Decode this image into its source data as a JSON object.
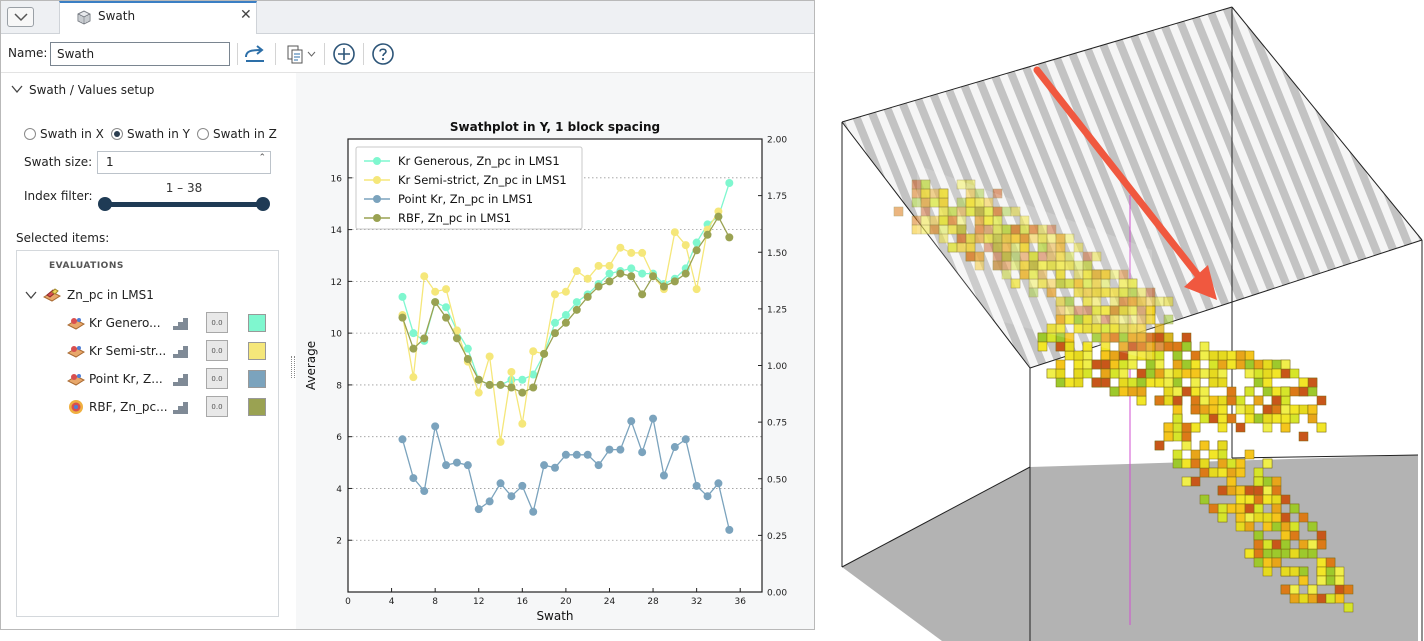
{
  "tab": {
    "title": "Swath",
    "close": "✕"
  },
  "toolbar": {
    "name_label": "Name:",
    "name_value": "Swath"
  },
  "setup": {
    "section_title": "Swath / Values setup",
    "radios": [
      {
        "label": "Swath in X",
        "selected": false
      },
      {
        "label": "Swath in Y",
        "selected": true
      },
      {
        "label": "Swath in Z",
        "selected": false
      }
    ],
    "swath_size_label": "Swath size:",
    "swath_size_value": "1",
    "index_filter_label": "Index filter:",
    "index_filter_range": "1 – 38",
    "index_filter_min": 1,
    "index_filter_max": 38
  },
  "selected_items": {
    "label": "Selected items:",
    "group_header": "EVALUATIONS",
    "root_label": "Zn_pc in LMS1",
    "items": [
      {
        "label": "Kr Genero...",
        "color": "#7ff7cf",
        "icon": "kriging-icon"
      },
      {
        "label": "Kr Semi-str...",
        "color": "#f5e77a",
        "icon": "kriging-icon"
      },
      {
        "label": "Point Kr, Z...",
        "color": "#7ba3bd",
        "icon": "kriging-icon"
      },
      {
        "label": "RBF, Zn_pc...",
        "color": "#9aa252",
        "icon": "rbf-icon"
      }
    ]
  },
  "chart_data": {
    "type": "line",
    "title": "Swathplot in Y, 1 block spacing",
    "xlabel": "Swath",
    "ylabel": "Average",
    "xlim": [
      0,
      38
    ],
    "ylim": [
      0,
      17.5
    ],
    "y2lim": [
      0,
      2
    ],
    "xticks": [
      "0",
      "4",
      "8",
      "12",
      "16",
      "20",
      "24",
      "28",
      "32",
      "36"
    ],
    "yticks": [
      "2",
      "4",
      "6",
      "8",
      "10",
      "12",
      "14",
      "16"
    ],
    "y2ticks": [
      "0.00",
      "0.25",
      "0.50",
      "0.75",
      "1.00",
      "1.25",
      "1.50",
      "1.75",
      "2.00"
    ],
    "grid": "horizontal-dotted",
    "legend_position": "top-left",
    "x": [
      5,
      6,
      7,
      8,
      9,
      10,
      11,
      12,
      13,
      14,
      15,
      16,
      17,
      18,
      19,
      20,
      21,
      22,
      23,
      24,
      25,
      26,
      27,
      28,
      29,
      30,
      31,
      32,
      33,
      34,
      35
    ],
    "series": [
      {
        "name": "Kr Generous, Zn_pc in LMS1",
        "color": "#7ff7cf",
        "values": [
          11.4,
          10.0,
          9.7,
          11.2,
          11.0,
          10.1,
          9.4,
          8.2,
          8.0,
          8.0,
          8.2,
          8.2,
          8.4,
          9.2,
          10.4,
          10.7,
          11.2,
          11.5,
          11.9,
          12.3,
          12.4,
          12.5,
          12.3,
          12.3,
          11.9,
          12.1,
          12.5,
          13.5,
          14.2,
          14.5,
          15.8
        ]
      },
      {
        "name": "Kr Semi-strict, Zn_pc in LMS1",
        "color": "#f5e77a",
        "values": [
          10.7,
          8.3,
          12.2,
          11.6,
          11.7,
          10.1,
          8.9,
          7.7,
          9.1,
          5.8,
          8.5,
          6.5,
          9.3,
          9.2,
          11.5,
          11.6,
          12.4,
          12.1,
          12.6,
          12.6,
          13.3,
          13.1,
          13.1,
          12.2,
          11.7,
          13.9,
          13.4,
          11.7,
          14.0,
          14.7,
          null
        ]
      },
      {
        "name": "Point Kr, Zn_pc in LMS1",
        "color": "#7ba3bd",
        "values": [
          5.9,
          4.4,
          3.9,
          6.4,
          4.9,
          5.0,
          4.9,
          3.2,
          3.5,
          4.2,
          3.7,
          4.1,
          3.1,
          4.9,
          4.8,
          5.3,
          5.3,
          5.3,
          4.9,
          5.5,
          5.5,
          6.6,
          5.4,
          6.7,
          4.5,
          5.6,
          5.9,
          4.1,
          3.7,
          4.2,
          2.4
        ]
      },
      {
        "name": "RBF, Zn_pc in LMS1",
        "color": "#9aa252",
        "values": [
          10.6,
          9.4,
          9.8,
          11.2,
          10.6,
          9.8,
          9.0,
          8.2,
          8.0,
          8.0,
          7.9,
          7.7,
          7.9,
          9.2,
          10.0,
          10.4,
          10.9,
          11.4,
          11.8,
          12.0,
          12.3,
          12.2,
          11.5,
          12.2,
          11.8,
          12.0,
          12.3,
          13.2,
          13.8,
          14.5,
          13.7
        ]
      }
    ]
  },
  "view3d": {
    "arrow_color": "#f0583f",
    "plane_color": "#bcbcbc"
  }
}
